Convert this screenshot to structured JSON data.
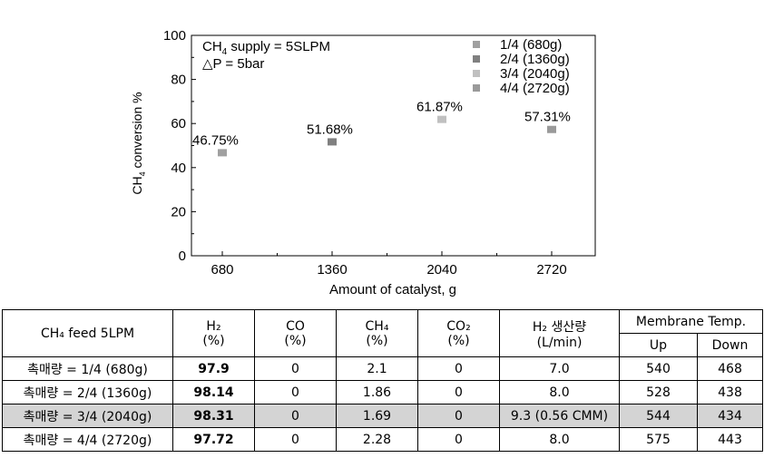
{
  "chart_data": {
    "type": "scatter",
    "title": "",
    "xlabel": "Amount of catalyst, g",
    "ylabel": "CH4 conversion %",
    "categories": [
      "680",
      "1360",
      "2040",
      "2720"
    ],
    "ylim": [
      0,
      100
    ],
    "yticks": [
      "0",
      "20",
      "40",
      "60",
      "80",
      "100"
    ],
    "series": [
      {
        "name": "1/4 (680g)",
        "x": "680",
        "value": 46.75,
        "label": "46.75%",
        "color": "#a0a0a0"
      },
      {
        "name": "2/4 (1360g)",
        "x": "1360",
        "value": 51.68,
        "label": "51.68%",
        "color": "#808080"
      },
      {
        "name": "3/4 (2040g)",
        "x": "2040",
        "value": 61.87,
        "label": "61.87%",
        "color": "#c0c0c0"
      },
      {
        "name": "4/4 (2720g)",
        "x": "2720",
        "value": 57.31,
        "label": "57.31%",
        "color": "#9a9a9a"
      }
    ],
    "annotations": {
      "line1_pre": "CH",
      "line1_sub": "4",
      "line1_post": " supply = 5SLPM",
      "line2": "△P = 5bar"
    },
    "legend_position": "top-right",
    "grid": false
  },
  "table": {
    "header": {
      "feed": "CH₄ feed 5LPM",
      "h2": "H₂",
      "co": "CO",
      "ch4": "CH₄",
      "co2": "CO₂",
      "prod": "H₂ 생산량",
      "unit_pct": "(%)",
      "unit_flow": "(L/min)",
      "membrane": "Membrane Temp.",
      "up": "Up",
      "down": "Down"
    },
    "rows": [
      {
        "label": "촉매량 = 1/4 (680g)",
        "h2": "97.9",
        "co": "0",
        "ch4": "2.1",
        "co2": "0",
        "prod": "7.0",
        "up": "540",
        "down": "468"
      },
      {
        "label": "촉매량 = 2/4 (1360g)",
        "h2": "98.14",
        "co": "0",
        "ch4": "1.86",
        "co2": "0",
        "prod": "8.0",
        "up": "528",
        "down": "438"
      },
      {
        "label": "촉매량 = 3/4 (2040g)",
        "h2": "98.31",
        "co": "0",
        "ch4": "1.69",
        "co2": "0",
        "prod": "9.3 (0.56 CMM)",
        "up": "544",
        "down": "434"
      },
      {
        "label": "촉매량 = 4/4 (2720g)",
        "h2": "97.72",
        "co": "0",
        "ch4": "2.28",
        "co2": "0",
        "prod": "8.0",
        "up": "575",
        "down": "443"
      }
    ]
  }
}
